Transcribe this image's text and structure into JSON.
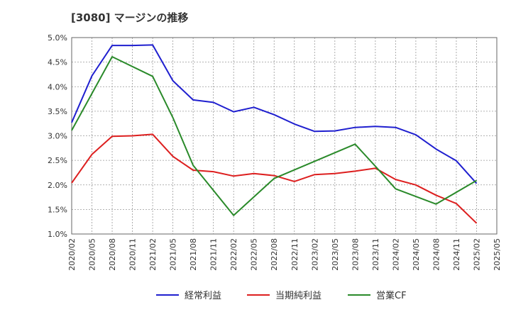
{
  "chart_data": {
    "type": "line",
    "title": "[3080]  マージンの推移",
    "xlabel": "",
    "ylabel": "",
    "ylim": [
      1.0,
      5.0
    ],
    "y_ticks": [
      "1.0%",
      "1.5%",
      "2.0%",
      "2.5%",
      "3.0%",
      "3.5%",
      "4.0%",
      "4.5%",
      "5.0%"
    ],
    "y_tick_values": [
      1.0,
      1.5,
      2.0,
      2.5,
      3.0,
      3.5,
      4.0,
      4.5,
      5.0
    ],
    "x_ticks": [
      "2020/02",
      "2020/05",
      "2020/08",
      "2020/11",
      "2021/02",
      "2021/05",
      "2021/08",
      "2021/11",
      "2022/02",
      "2022/05",
      "2022/08",
      "2022/11",
      "2023/02",
      "2023/05",
      "2023/08",
      "2023/11",
      "2024/02",
      "2024/05",
      "2024/08",
      "2024/11",
      "2025/02",
      "2025/05"
    ],
    "grid": true,
    "legend_position": "bottom",
    "series": [
      {
        "name": "経常利益",
        "color": "#1f1fcf",
        "x": [
          "2020/02",
          "2020/05",
          "2020/08",
          "2020/11",
          "2021/02",
          "2021/05",
          "2021/08",
          "2021/11",
          "2022/02",
          "2022/05",
          "2022/08",
          "2022/11",
          "2023/02",
          "2023/05",
          "2023/08",
          "2023/11",
          "2024/02",
          "2024/05",
          "2024/08",
          "2024/11",
          "2025/02"
        ],
        "values": [
          3.27,
          4.22,
          4.84,
          4.84,
          4.85,
          4.12,
          3.73,
          3.68,
          3.49,
          3.58,
          3.43,
          3.24,
          3.09,
          3.1,
          3.17,
          3.19,
          3.17,
          3.02,
          2.73,
          2.49,
          2.03
        ]
      },
      {
        "name": "当期純利益",
        "color": "#dd1f1f",
        "x": [
          "2020/02",
          "2020/05",
          "2020/08",
          "2020/11",
          "2021/02",
          "2021/05",
          "2021/08",
          "2021/11",
          "2022/02",
          "2022/05",
          "2022/08",
          "2022/11",
          "2023/02",
          "2023/05",
          "2023/08",
          "2023/11",
          "2024/02",
          "2024/05",
          "2024/08",
          "2024/11",
          "2025/02"
        ],
        "values": [
          2.04,
          2.62,
          2.99,
          3.0,
          3.03,
          2.58,
          2.3,
          2.27,
          2.18,
          2.23,
          2.19,
          2.07,
          2.21,
          2.23,
          2.28,
          2.34,
          2.11,
          2.0,
          1.79,
          1.62,
          1.22
        ]
      },
      {
        "name": "営業CF",
        "color": "#2a8a2a",
        "x": [
          "2020/02",
          "2020/08",
          "2021/02",
          "2021/05",
          "2021/08",
          "2022/02",
          "2022/08",
          "2023/08",
          "2023/11",
          "2024/02",
          "2024/08",
          "2025/02"
        ],
        "values": [
          3.11,
          4.61,
          4.21,
          3.37,
          2.4,
          1.38,
          2.13,
          2.83,
          2.38,
          1.92,
          1.61,
          2.09
        ]
      }
    ]
  }
}
